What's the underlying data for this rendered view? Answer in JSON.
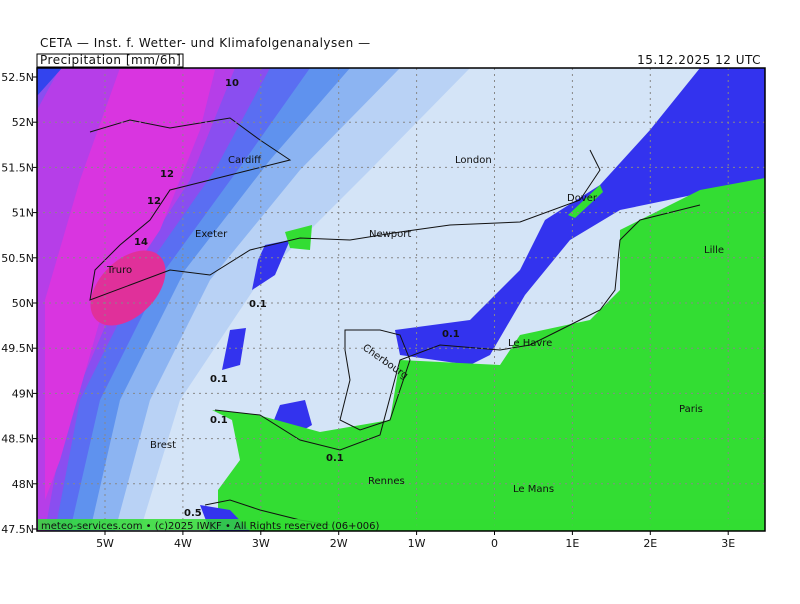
{
  "header": {
    "title": "CETA — Inst. f. Wetter- und Klimafolgenanalysen —",
    "variable": "Precipitation [mm/6h]",
    "valid_time": "15.12.2025 12 UTC"
  },
  "axes": {
    "lat_labels": [
      "52.5N",
      "52N",
      "51.5N",
      "51N",
      "50.5N",
      "50N",
      "49.5N",
      "49N",
      "48.5N",
      "48N",
      "47.5N"
    ],
    "lon_labels": [
      "5W",
      "4W",
      "3W",
      "2W",
      "1W",
      "0",
      "1E",
      "2E",
      "3E"
    ]
  },
  "places": [
    "London",
    "Cardiff",
    "Exeter",
    "Truro",
    "Newport",
    "Dover",
    "Lille",
    "Cherbourg",
    "Le Havre",
    "Paris",
    "Brest",
    "Rennes",
    "Le Mans"
  ],
  "contour_labels": [
    "10",
    "12",
    "12",
    "14",
    "0.1",
    "0.1",
    "0.1",
    "0.1",
    "0.1",
    "0.5"
  ],
  "footer": "meteo-services.com • (c)2025 IWKF • All Rights reserved (06+006)"
}
